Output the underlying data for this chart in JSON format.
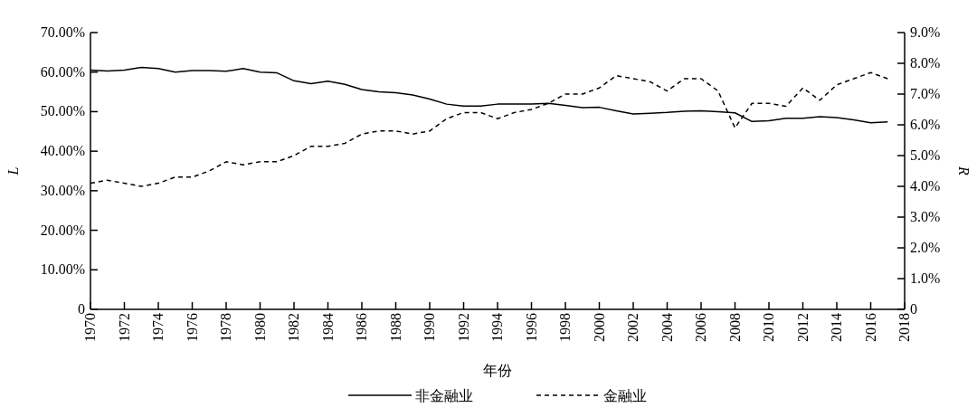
{
  "chart_data": {
    "type": "line",
    "xlabel": "年份",
    "ylabel": "L",
    "y2label": "R",
    "x": [
      1970,
      1971,
      1972,
      1973,
      1974,
      1975,
      1976,
      1977,
      1978,
      1979,
      1980,
      1981,
      1982,
      1983,
      1984,
      1985,
      1986,
      1987,
      1988,
      1989,
      1990,
      1991,
      1992,
      1993,
      1994,
      1995,
      1996,
      1997,
      1998,
      1999,
      2000,
      2001,
      2002,
      2003,
      2004,
      2005,
      2006,
      2007,
      2008,
      2009,
      2010,
      2011,
      2012,
      2013,
      2014,
      2015,
      2016,
      2017
    ],
    "series": [
      {
        "name": "非金融业",
        "color": "#000000",
        "line_style": "solid",
        "values": [
          60.5,
          60.3,
          60.5,
          61.2,
          60.9,
          60.0,
          60.4,
          60.4,
          60.2,
          60.9,
          60.0,
          59.8,
          57.8,
          57.1,
          57.7,
          56.9,
          55.6,
          55.0,
          54.8,
          54.2,
          53.2,
          51.9,
          51.4,
          51.4,
          51.9,
          51.9,
          51.9,
          52.1,
          51.6,
          51.0,
          51.1,
          50.2,
          49.4,
          49.6,
          49.8,
          50.1,
          50.2,
          50.0,
          49.7,
          47.5,
          47.7,
          48.3,
          48.3,
          48.7,
          48.5,
          47.9,
          47.2,
          47.4
        ]
      },
      {
        "name": "金融业",
        "color": "#000000",
        "line_style": "dashed",
        "axis": "y2",
        "values": [
          4.1,
          4.2,
          4.1,
          4.0,
          4.1,
          4.3,
          4.3,
          4.5,
          4.8,
          4.7,
          4.8,
          4.8,
          5.0,
          5.3,
          5.3,
          5.4,
          5.7,
          5.8,
          5.8,
          5.7,
          5.8,
          6.2,
          6.4,
          6.4,
          6.2,
          6.4,
          6.5,
          6.7,
          7.0,
          7.0,
          7.2,
          7.6,
          7.5,
          7.4,
          7.1,
          7.5,
          7.5,
          7.1,
          5.9,
          6.7,
          6.7,
          6.6,
          7.2,
          6.8,
          7.3,
          7.5,
          7.7,
          7.5
        ]
      }
    ],
    "xlim": [
      1970,
      2018
    ],
    "xticks": [
      1970,
      1972,
      1974,
      1976,
      1978,
      1980,
      1982,
      1984,
      1986,
      1988,
      1990,
      1992,
      1994,
      1996,
      1998,
      2000,
      2002,
      2004,
      2006,
      2008,
      2010,
      2012,
      2014,
      2016,
      2018
    ],
    "ylim": [
      0,
      70
    ],
    "yticks": [
      0,
      {
        "value": 10,
        "label": "10.00%"
      },
      {
        "value": 20,
        "label": "20.00%"
      },
      {
        "value": 30,
        "label": "30.00%"
      },
      {
        "value": 40,
        "label": "40.00%"
      },
      {
        "value": 50,
        "label": "50.00%"
      },
      {
        "value": 60,
        "label": "60.00%"
      },
      {
        "value": 70,
        "label": "70.00%"
      }
    ],
    "y2lim": [
      0,
      9
    ],
    "y2ticks": [
      0,
      {
        "value": 1,
        "label": "1.0%"
      },
      {
        "value": 2,
        "label": "2.0%"
      },
      {
        "value": 3,
        "label": "3.0%"
      },
      {
        "value": 4,
        "label": "4.0%"
      },
      {
        "value": 5,
        "label": "5.0%"
      },
      {
        "value": 6,
        "label": "6.0%"
      },
      {
        "value": 7,
        "label": "7.0%"
      },
      {
        "value": 8,
        "label": "8.0%"
      },
      {
        "value": 9,
        "label": "9.0%"
      }
    ],
    "grid": false,
    "legend": "bottom",
    "marker": "none"
  }
}
